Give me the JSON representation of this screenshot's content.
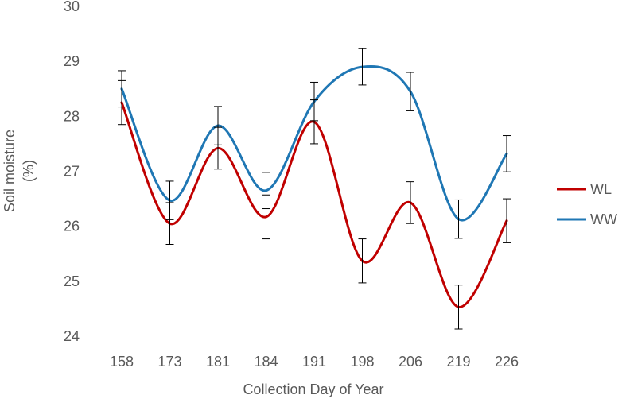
{
  "chart_data": {
    "type": "line",
    "title": "",
    "xlabel": "Collection Day of Year",
    "ylabel_lines": [
      "Soil moisture",
      "(%)"
    ],
    "categories": [
      "158",
      "173",
      "181",
      "184",
      "191",
      "198",
      "206",
      "219",
      "226"
    ],
    "ylim": [
      24,
      30
    ],
    "yticks": [
      "24",
      "25",
      "26",
      "27",
      "28",
      "29",
      "30"
    ],
    "grid": false,
    "legend_position": "right",
    "smooth": true,
    "error_bars": true,
    "series": [
      {
        "name": "WL",
        "color": "#c00000",
        "values": [
          28.25,
          26.05,
          27.42,
          26.17,
          27.9,
          25.37,
          26.43,
          24.53,
          26.1
        ],
        "errors": [
          0.4,
          0.38,
          0.38,
          0.4,
          0.4,
          0.4,
          0.38,
          0.4,
          0.4
        ]
      },
      {
        "name": "WW",
        "color": "#1f77b4",
        "values": [
          28.5,
          26.47,
          27.83,
          26.65,
          28.27,
          28.9,
          28.45,
          26.13,
          27.32
        ],
        "errors": [
          0.33,
          0.35,
          0.35,
          0.33,
          0.35,
          0.33,
          0.35,
          0.35,
          0.33
        ]
      }
    ]
  }
}
